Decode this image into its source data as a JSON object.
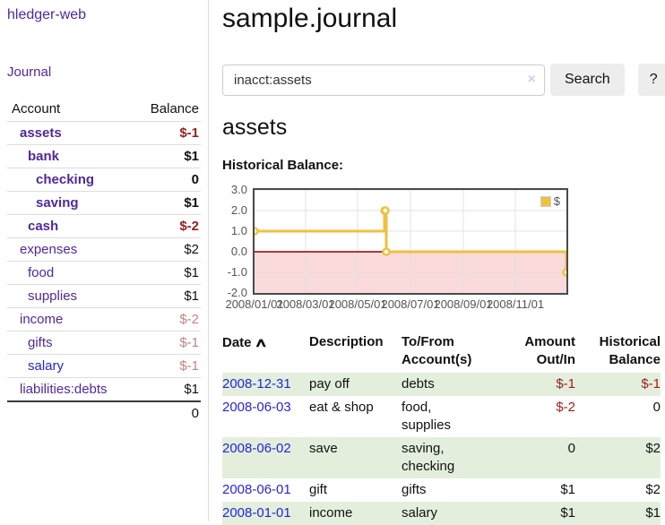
{
  "app": {
    "brand": "hledger-web",
    "nav_journal": "Journal"
  },
  "sidebar": {
    "header": {
      "account": "Account",
      "balance": "Balance"
    },
    "accounts": [
      {
        "name": "assets",
        "balance": "$-1"
      },
      {
        "name": "bank",
        "balance": "$1"
      },
      {
        "name": "checking",
        "balance": "0"
      },
      {
        "name": "saving",
        "balance": "$1"
      },
      {
        "name": "cash",
        "balance": "$-2"
      },
      {
        "name": "expenses",
        "balance": "$2"
      },
      {
        "name": "food",
        "balance": "$1"
      },
      {
        "name": "supplies",
        "balance": "$1"
      },
      {
        "name": "income",
        "balance": "$-2"
      },
      {
        "name": "gifts",
        "balance": "$-1"
      },
      {
        "name": "salary",
        "balance": "$-1"
      },
      {
        "name": "liabilities:debts",
        "balance": "$1"
      }
    ],
    "total": "0"
  },
  "header": {
    "title": "sample.journal"
  },
  "search": {
    "value": "inacct:assets",
    "clear_icon": "×",
    "button_label": "Search",
    "help_label": "?"
  },
  "account_page": {
    "heading": "assets",
    "chart_label": "Historical Balance:"
  },
  "chart_data": {
    "type": "line",
    "step": true,
    "title": "Historical Balance",
    "series": [
      {
        "name": "$",
        "color": "#edc240",
        "points": [
          [
            "2008-01-01",
            1
          ],
          [
            "2008-06-01",
            2
          ],
          [
            "2008-06-02",
            2
          ],
          [
            "2008-06-03",
            0
          ],
          [
            "2008-12-31",
            -1
          ]
        ]
      }
    ],
    "xrange": [
      "2008-01-01",
      "2008-12-31"
    ],
    "ylim": [
      -2,
      3
    ],
    "yticks": [
      "3.0",
      "2.0",
      "1.0",
      "0.0",
      "-1.0",
      "-2.0"
    ],
    "ytick_values": [
      3,
      2,
      1,
      0,
      -1,
      -2
    ],
    "xticks": [
      "2008/01/01",
      "2008/03/01",
      "2008/05/01",
      "2008/07/01",
      "2008/09/01",
      "2008/11/01"
    ],
    "legend": "$",
    "legend_position": "top-right",
    "grid": true,
    "negative_region_fill": "#fadada",
    "zero_line_color": "#900000"
  },
  "table": {
    "headers": [
      "Date",
      "Description",
      "To/From Account(s)",
      "Amount Out/In",
      "Historical Balance"
    ],
    "sort_icon": "∧",
    "rows": [
      {
        "date": "2008-12-31",
        "description": "pay off",
        "accounts": "debts",
        "amount": "$-1",
        "balance": "$-1"
      },
      {
        "date": "2008-06-03",
        "description": "eat & shop",
        "accounts": "food, supplies",
        "amount": "$-2",
        "balance": "0"
      },
      {
        "date": "2008-06-02",
        "description": "save",
        "accounts": "saving, checking",
        "amount": "0",
        "balance": "$2"
      },
      {
        "date": "2008-06-01",
        "description": "gift",
        "accounts": "gifts",
        "amount": "$1",
        "balance": "$2"
      },
      {
        "date": "2008-01-01",
        "description": "income",
        "accounts": "salary",
        "amount": "$1",
        "balance": "$1"
      }
    ]
  }
}
